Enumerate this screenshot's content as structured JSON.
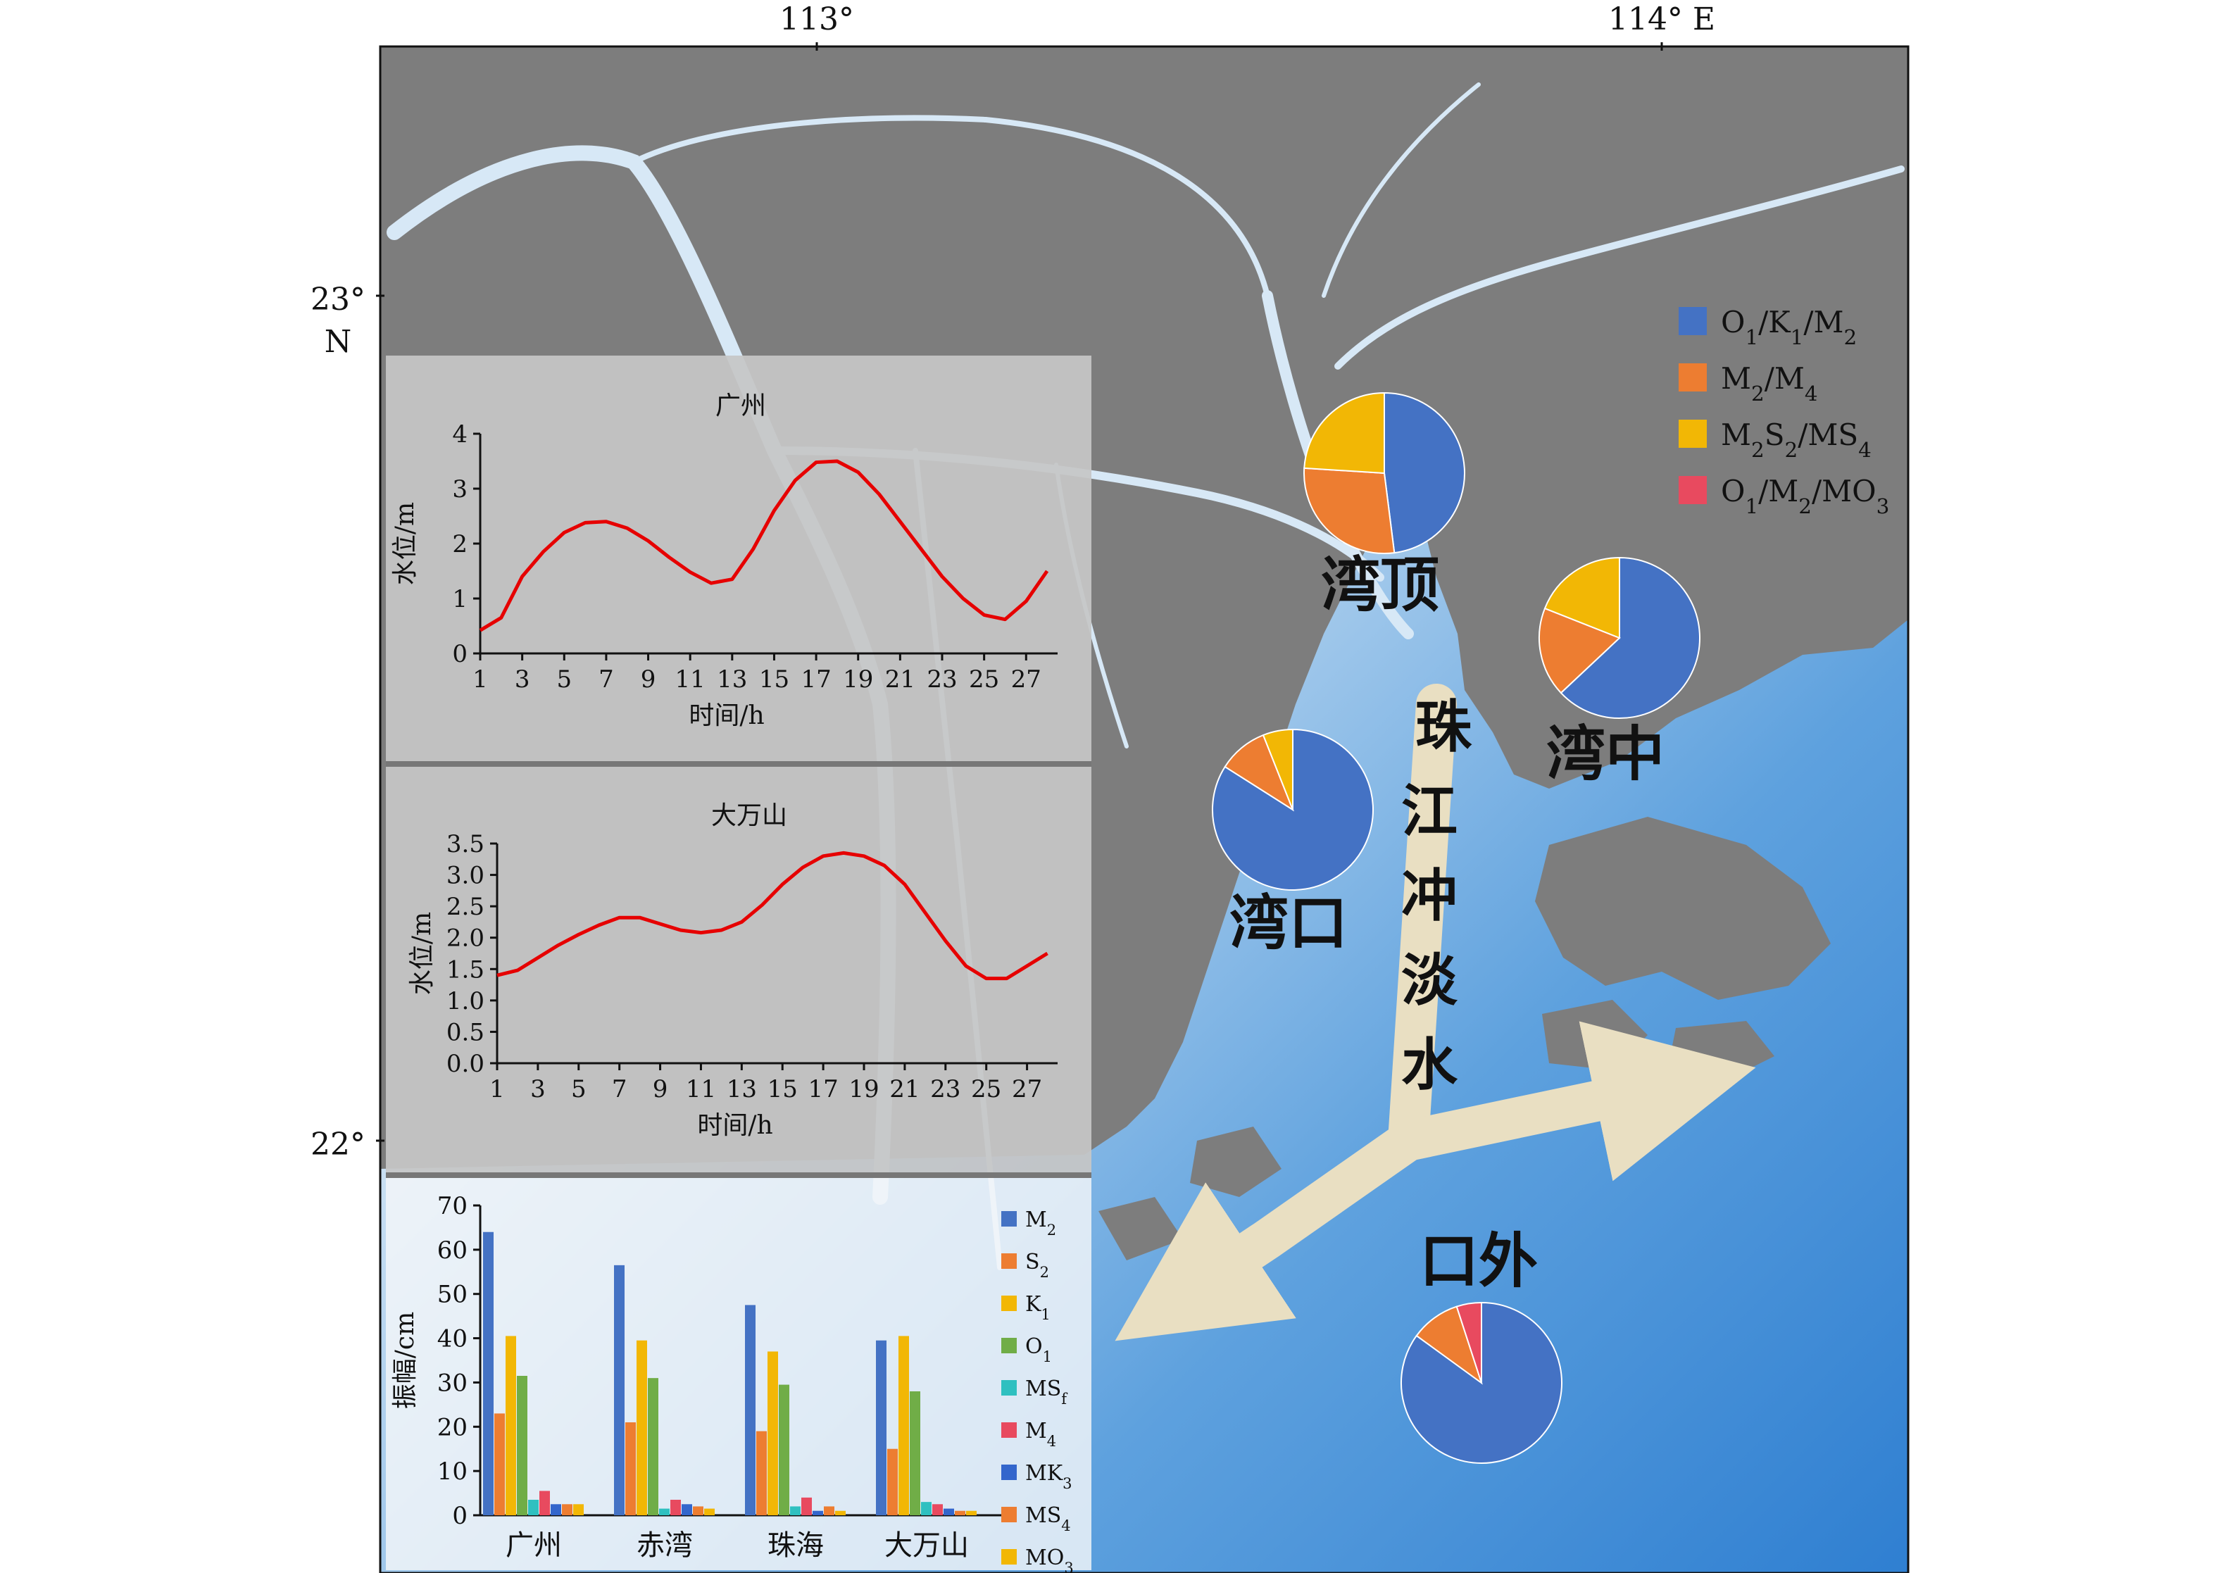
{
  "map": {
    "lon_labels": [
      "113°",
      "114° E"
    ],
    "lat_labels": [
      "23°",
      "N",
      "22°"
    ],
    "region_labels": [
      "湾顶",
      "湾中",
      "湾口",
      "口外"
    ],
    "plume_label": [
      "珠",
      "江",
      "冲",
      "淡",
      "水"
    ],
    "colors": {
      "land": "#7d7d7d",
      "sea_deep": "#2f7fd1",
      "sea_light": "#ffffff",
      "plume": "#e9dfc2",
      "panel": "#c6c6c6"
    }
  },
  "pie_legend": {
    "items": [
      {
        "label": "O1/K1/M2",
        "color": "#4472c4"
      },
      {
        "label": "M2/M4",
        "color": "#ed7d31"
      },
      {
        "label": "M2S2/MS4",
        "color": "#f2b705"
      },
      {
        "label": "O1/M2/MO3",
        "color": "#e84a5f"
      }
    ]
  },
  "chart_data": [
    {
      "type": "line",
      "title": "广州",
      "xlabel": "时间/h",
      "ylabel": "水位/m",
      "x": [
        1,
        2,
        3,
        4,
        5,
        6,
        7,
        8,
        9,
        10,
        11,
        12,
        13,
        14,
        15,
        16,
        17,
        18,
        19,
        20,
        21,
        22,
        23,
        24,
        25,
        26,
        27,
        28
      ],
      "x_tick_labels": [
        "1",
        "3",
        "5",
        "7",
        "9",
        "11",
        "13",
        "15",
        "17",
        "19",
        "21",
        "23",
        "25",
        "27"
      ],
      "ylim": [
        0,
        4
      ],
      "y_tick_labels": [
        "0",
        "1",
        "2",
        "3",
        "4"
      ],
      "series": [
        {
          "values": [
            0.42,
            0.65,
            1.4,
            1.85,
            2.2,
            2.38,
            2.4,
            2.28,
            2.05,
            1.75,
            1.48,
            1.28,
            1.35,
            1.9,
            2.6,
            3.15,
            3.48,
            3.5,
            3.3,
            2.9,
            2.4,
            1.9,
            1.4,
            1.0,
            0.7,
            0.62,
            0.95,
            1.5
          ],
          "color": "#e60000"
        }
      ]
    },
    {
      "type": "line",
      "title": "大万山",
      "xlabel": "时间/h",
      "ylabel": "水位/m",
      "x": [
        1,
        2,
        3,
        4,
        5,
        6,
        7,
        8,
        9,
        10,
        11,
        12,
        13,
        14,
        15,
        16,
        17,
        18,
        19,
        20,
        21,
        22,
        23,
        24,
        25,
        26,
        27,
        28
      ],
      "x_tick_labels": [
        "1",
        "3",
        "5",
        "7",
        "9",
        "11",
        "13",
        "15",
        "17",
        "19",
        "21",
        "23",
        "25",
        "27"
      ],
      "ylim": [
        0,
        3.5
      ],
      "y_tick_labels": [
        "0.0",
        "0.5",
        "1.0",
        "1.5",
        "2.0",
        "2.5",
        "3.0",
        "3.5"
      ],
      "series": [
        {
          "values": [
            1.4,
            1.48,
            1.68,
            1.88,
            2.05,
            2.2,
            2.32,
            2.32,
            2.22,
            2.12,
            2.08,
            2.12,
            2.25,
            2.52,
            2.85,
            3.12,
            3.3,
            3.35,
            3.3,
            3.15,
            2.85,
            2.4,
            1.95,
            1.55,
            1.35,
            1.35,
            1.55,
            1.75
          ],
          "color": "#e60000"
        }
      ]
    },
    {
      "type": "bar",
      "ylabel": "振幅/cm",
      "categories": [
        "广州",
        "赤湾",
        "珠海",
        "大万山"
      ],
      "ylim": [
        0,
        70
      ],
      "y_tick_labels": [
        "0",
        "10",
        "20",
        "30",
        "40",
        "50",
        "60",
        "70"
      ],
      "legend_position": "right",
      "series": [
        {
          "name": "M2",
          "color": "#4472c4",
          "values": [
            64,
            56.5,
            47.5,
            39.5
          ]
        },
        {
          "name": "S2",
          "color": "#ed7d31",
          "values": [
            23,
            21,
            19,
            15
          ]
        },
        {
          "name": "K1",
          "color": "#f2b705",
          "values": [
            40.5,
            39.5,
            37,
            40.5
          ]
        },
        {
          "name": "O1",
          "color": "#70ad47",
          "values": [
            31.5,
            31,
            29.5,
            28
          ]
        },
        {
          "name": "MSf",
          "color": "#2fc0c0",
          "values": [
            3.5,
            1.5,
            2,
            3
          ]
        },
        {
          "name": "M4",
          "color": "#e84a5f",
          "values": [
            5.5,
            3.5,
            4,
            2.5
          ]
        },
        {
          "name": "MK3",
          "color": "#3366cc",
          "values": [
            2.5,
            2.5,
            1,
            1.5
          ]
        },
        {
          "name": "MS4",
          "color": "#ed7d31",
          "values": [
            2.5,
            2,
            2,
            1
          ]
        },
        {
          "name": "MO3",
          "color": "#f2b705",
          "values": [
            2.5,
            1.5,
            1,
            1
          ]
        }
      ]
    },
    {
      "type": "pie",
      "title": "湾顶",
      "labels": [
        "O1/K1/M2",
        "M2/M4",
        "M2S2/MS4",
        "O1/M2/MO3"
      ],
      "values": [
        48,
        28,
        24,
        0
      ],
      "colors": [
        "#4472c4",
        "#ed7d31",
        "#f2b705",
        "#e84a5f"
      ]
    },
    {
      "type": "pie",
      "title": "湾中",
      "labels": [
        "O1/K1/M2",
        "M2/M4",
        "M2S2/MS4",
        "O1/M2/MO3"
      ],
      "values": [
        63,
        18,
        19,
        0
      ],
      "colors": [
        "#4472c4",
        "#ed7d31",
        "#f2b705",
        "#e84a5f"
      ]
    },
    {
      "type": "pie",
      "title": "湾口",
      "labels": [
        "O1/K1/M2",
        "M2/M4",
        "M2S2/MS4",
        "O1/M2/MO3"
      ],
      "values": [
        84,
        10,
        6,
        0
      ],
      "colors": [
        "#4472c4",
        "#ed7d31",
        "#f2b705",
        "#e84a5f"
      ]
    },
    {
      "type": "pie",
      "title": "口外",
      "labels": [
        "O1/K1/M2",
        "M2/M4",
        "M2S2/MS4",
        "O1/M2/MO3"
      ],
      "values": [
        85,
        10,
        0,
        5
      ],
      "colors": [
        "#4472c4",
        "#ed7d31",
        "#f2b705",
        "#e84a5f"
      ]
    }
  ]
}
